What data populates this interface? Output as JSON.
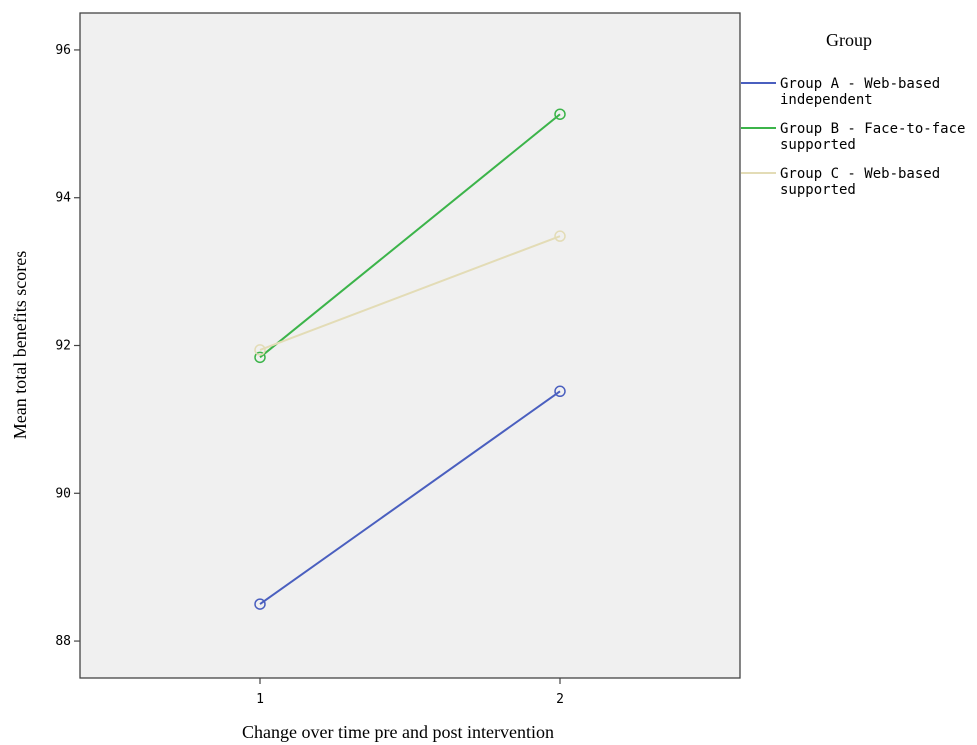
{
  "chart_data": {
    "type": "line",
    "xlabel": "Change over time pre and post intervention",
    "ylabel": "Mean total benefits scores",
    "x": [
      1,
      2
    ],
    "x_ticks": [
      "1",
      "2"
    ],
    "xlim": [
      0.4,
      2.6
    ],
    "ylim": [
      87.5,
      96.5
    ],
    "y_ticks": [
      88,
      90,
      92,
      94,
      96
    ],
    "grid": false,
    "legend": {
      "title": "Group",
      "placement": "right",
      "entries": [
        {
          "lines": [
            "Group A - Web-based",
            "independent"
          ]
        },
        {
          "lines": [
            "Group B - Face-to-face",
            "supported"
          ]
        },
        {
          "lines": [
            "Group C - Web-based",
            "supported"
          ]
        }
      ]
    },
    "series": [
      {
        "name": "Group A - Web-based independent",
        "values": [
          88.5,
          91.38
        ],
        "color": "#4a5fbf"
      },
      {
        "name": "Group B - Face-to-face supported",
        "values": [
          91.84,
          95.13
        ],
        "color": "#3cb44a"
      },
      {
        "name": "Group C - Web-based supported",
        "values": [
          91.94,
          93.48
        ],
        "color": "#e3dcb6"
      }
    ],
    "plot_background": "#f0f0f0"
  }
}
